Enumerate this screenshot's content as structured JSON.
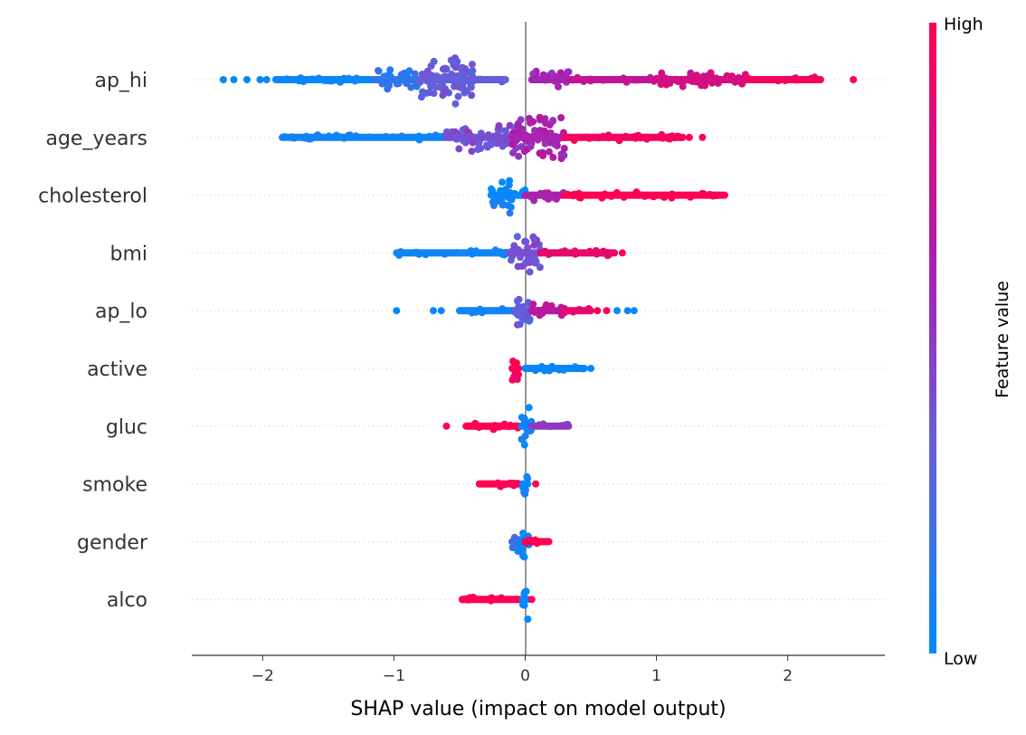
{
  "chart_data": {
    "type": "scatter",
    "subtype": "shap-beeswarm",
    "xlabel": "SHAP value (impact on model output)",
    "xlim": [
      -2.54,
      2.74
    ],
    "xticks": [
      -2,
      -1,
      0,
      1,
      2
    ],
    "xtick_labels": [
      "−2",
      "−1",
      "0",
      "1",
      "2"
    ],
    "colorbar": {
      "label": "Feature value",
      "high_label": "High",
      "low_label": "Low",
      "low_color": "#008bfb",
      "high_color": "#ff0052"
    },
    "grid": "dotted horizontal per feature",
    "features": [
      {
        "name": "ap_hi",
        "clusters": [
          {
            "from": -1.9,
            "to": -1.15,
            "value": 0.03,
            "density": 0.15
          },
          {
            "from": -1.15,
            "to": -0.8,
            "value": 0.15,
            "density": 0.45
          },
          {
            "from": -0.8,
            "to": -0.4,
            "value": 0.33,
            "density": 1.0
          },
          {
            "from": -0.4,
            "to": -0.15,
            "value": 0.33,
            "density": 0.12
          },
          {
            "from": 0.05,
            "to": 0.35,
            "value": 0.6,
            "density": 0.4
          },
          {
            "from": 0.35,
            "to": 1.0,
            "value": 0.72,
            "density": 0.12
          },
          {
            "from": 1.0,
            "to": 1.7,
            "value": 0.8,
            "density": 0.35
          },
          {
            "from": 1.7,
            "to": 2.25,
            "value": 0.95,
            "density": 0.12
          }
        ],
        "outliers": [
          [
            -2.3,
            0.02
          ],
          [
            -2.22,
            0.02
          ],
          [
            -2.12,
            0.02
          ],
          [
            -2.02,
            0.02
          ],
          [
            -1.97,
            0.02
          ],
          [
            2.5,
            1.0
          ]
        ]
      },
      {
        "name": "age_years",
        "clusters": [
          {
            "from": -1.85,
            "to": -0.6,
            "value": 0.05,
            "density": 0.12
          },
          {
            "from": -0.6,
            "to": -0.05,
            "value": 0.4,
            "density": 0.6
          },
          {
            "from": -0.1,
            "to": 0.3,
            "value": 0.6,
            "density": 1.0
          },
          {
            "from": 0.3,
            "to": 1.2,
            "value": 0.95,
            "density": 0.15
          }
        ],
        "outliers": [
          [
            1.25,
            1.0
          ],
          [
            1.35,
            1.0
          ]
        ]
      },
      {
        "name": "cholesterol",
        "clusters": [
          {
            "from": -0.26,
            "to": -0.1,
            "value": 0.02,
            "density": 0.8
          },
          {
            "from": -0.1,
            "to": 0.0,
            "value": 0.02,
            "density": 0.3
          },
          {
            "from": 0.0,
            "to": 0.3,
            "value": 0.62,
            "density": 0.25
          },
          {
            "from": 0.3,
            "to": 1.52,
            "value": 1.0,
            "density": 0.14
          }
        ],
        "outliers": []
      },
      {
        "name": "bmi",
        "clusters": [
          {
            "from": -0.98,
            "to": -0.12,
            "value": 0.05,
            "density": 0.12
          },
          {
            "from": -0.12,
            "to": 0.12,
            "value": 0.4,
            "density": 0.9
          },
          {
            "from": 0.12,
            "to": 0.68,
            "value": 0.9,
            "density": 0.15
          }
        ],
        "outliers": [
          [
            0.74,
            1.0
          ]
        ]
      },
      {
        "name": "ap_lo",
        "clusters": [
          {
            "from": -0.5,
            "to": -0.08,
            "value": 0.05,
            "density": 0.12
          },
          {
            "from": -0.08,
            "to": 0.05,
            "value": 0.33,
            "density": 0.8
          },
          {
            "from": 0.05,
            "to": 0.3,
            "value": 0.68,
            "density": 0.3
          },
          {
            "from": 0.3,
            "to": 0.5,
            "value": 0.9,
            "density": 0.1
          }
        ],
        "outliers": [
          [
            -0.98,
            0.02
          ],
          [
            -0.7,
            0.02
          ],
          [
            -0.64,
            0.02
          ],
          [
            0.55,
            1.0
          ],
          [
            0.62,
            1.0
          ],
          [
            0.7,
            0.05
          ],
          [
            0.78,
            0.05
          ],
          [
            0.83,
            0.05
          ]
        ]
      },
      {
        "name": "active",
        "clusters": [
          {
            "from": -0.1,
            "to": -0.05,
            "value": 1.0,
            "density": 0.9
          },
          {
            "from": 0.0,
            "to": 0.45,
            "value": 0.03,
            "density": 0.15
          }
        ],
        "outliers": [
          [
            0.5,
            0.03
          ]
        ]
      },
      {
        "name": "gluc",
        "clusters": [
          {
            "from": -0.45,
            "to": -0.05,
            "value": 1.0,
            "density": 0.15
          },
          {
            "from": -0.03,
            "to": 0.05,
            "value": 0.03,
            "density": 0.9
          },
          {
            "from": 0.05,
            "to": 0.33,
            "value": 0.5,
            "density": 0.12
          }
        ],
        "outliers": [
          [
            -0.6,
            1.0
          ]
        ]
      },
      {
        "name": "smoke",
        "clusters": [
          {
            "from": -0.35,
            "to": -0.05,
            "value": 1.0,
            "density": 0.15
          },
          {
            "from": -0.02,
            "to": 0.02,
            "value": 0.03,
            "density": 0.9
          }
        ],
        "outliers": [
          [
            0.08,
            1.0
          ]
        ]
      },
      {
        "name": "gender",
        "clusters": [
          {
            "from": -0.1,
            "to": 0.0,
            "value": 0.2,
            "density": 0.5
          },
          {
            "from": -0.03,
            "to": 0.03,
            "value": 0.03,
            "density": 0.9
          },
          {
            "from": 0.0,
            "to": 0.18,
            "value": 1.0,
            "density": 0.2
          }
        ],
        "outliers": []
      },
      {
        "name": "alco",
        "clusters": [
          {
            "from": -0.48,
            "to": -0.03,
            "value": 1.0,
            "density": 0.13
          },
          {
            "from": -0.02,
            "to": 0.02,
            "value": 0.03,
            "density": 0.9
          }
        ],
        "outliers": [
          [
            0.05,
            1.0
          ]
        ]
      }
    ]
  }
}
